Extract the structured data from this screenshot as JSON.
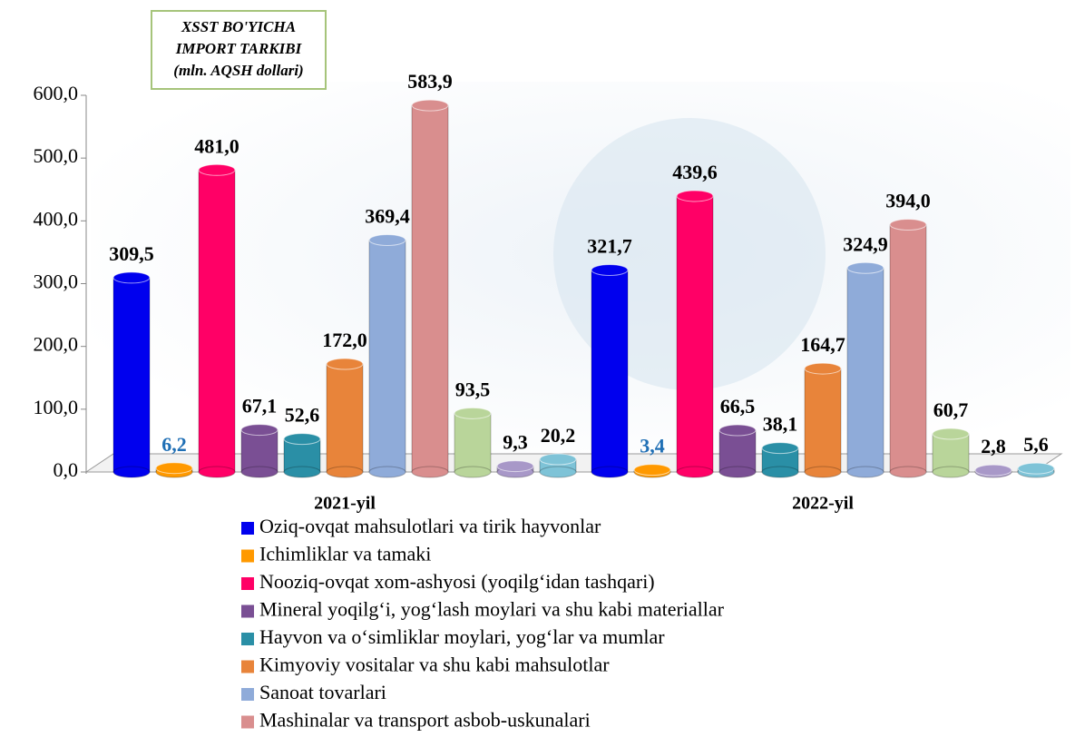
{
  "chart_data": {
    "type": "bar",
    "title": [
      "XSST BO'YICHA",
      "IMPORT TARKIBI",
      "(mln. AQSH dollari)"
    ],
    "categories": [
      "2021-yil",
      "2022-yil"
    ],
    "ylim": [
      0,
      600
    ],
    "yticks": [
      {
        "value": 0,
        "label": "0,0"
      },
      {
        "value": 100,
        "label": "100,0"
      },
      {
        "value": 200,
        "label": "200,0"
      },
      {
        "value": 300,
        "label": "300,0"
      },
      {
        "value": 400,
        "label": "400,0"
      },
      {
        "value": 500,
        "label": "500,0"
      },
      {
        "value": 600,
        "label": "600,0"
      }
    ],
    "series": [
      {
        "name": "Oziq-ovqat mahsulotlari va tirik hayvonlar",
        "color": "#0000ee",
        "values": [
          309.5,
          321.7
        ],
        "value_labels": [
          "309,5",
          "321,7"
        ]
      },
      {
        "name": "Ichimliklar va tamaki",
        "color": "#ff9900",
        "values": [
          6.2,
          3.4
        ],
        "value_labels": [
          "6,2",
          "3,4"
        ]
      },
      {
        "name": "Nooziq-ovqat xom-ashyosi (yoqilg‘idan tashqari)",
        "color": "#ff0066",
        "values": [
          481.0,
          439.6
        ],
        "value_labels": [
          "481,0",
          "439,6"
        ]
      },
      {
        "name": "Mineral yoqilg‘i, yog‘lash moylari va shu kabi materiallar",
        "color": "#7a4f94",
        "values": [
          67.1,
          66.5
        ],
        "value_labels": [
          "67,1",
          "66,5"
        ]
      },
      {
        "name": "Hayvon va o‘simliklar moylari, yog‘lar va mumlar",
        "color": "#2a8fa6",
        "values": [
          52.6,
          38.1
        ],
        "value_labels": [
          "52,6",
          "38,1"
        ]
      },
      {
        "name": "Kimyoviy vositalar va shu kabi mahsulotlar",
        "color": "#e8843a",
        "values": [
          172.0,
          164.7
        ],
        "value_labels": [
          "172,0",
          "164,7"
        ]
      },
      {
        "name": "Sanoat tovarlari",
        "color": "#8fabd9",
        "values": [
          369.4,
          324.9
        ],
        "value_labels": [
          "369,4",
          "324,9"
        ]
      },
      {
        "name": "Mashinalar va transport asbob-uskunalari",
        "color": "#d98e8e",
        "values": [
          583.9,
          394.0
        ],
        "value_labels": [
          "583,9",
          "394,0"
        ]
      },
      {
        "color": "#b9d59a",
        "values": [
          93.5,
          60.7
        ],
        "value_labels": [
          "93,5",
          "60,7"
        ]
      },
      {
        "color": "#a898c8",
        "values": [
          9.3,
          2.8
        ],
        "value_labels": [
          "9,3",
          "2,8"
        ]
      },
      {
        "color": "#7ec3d7",
        "values": [
          20.2,
          5.6
        ],
        "value_labels": [
          "20,2",
          "5,6"
        ]
      }
    ]
  }
}
